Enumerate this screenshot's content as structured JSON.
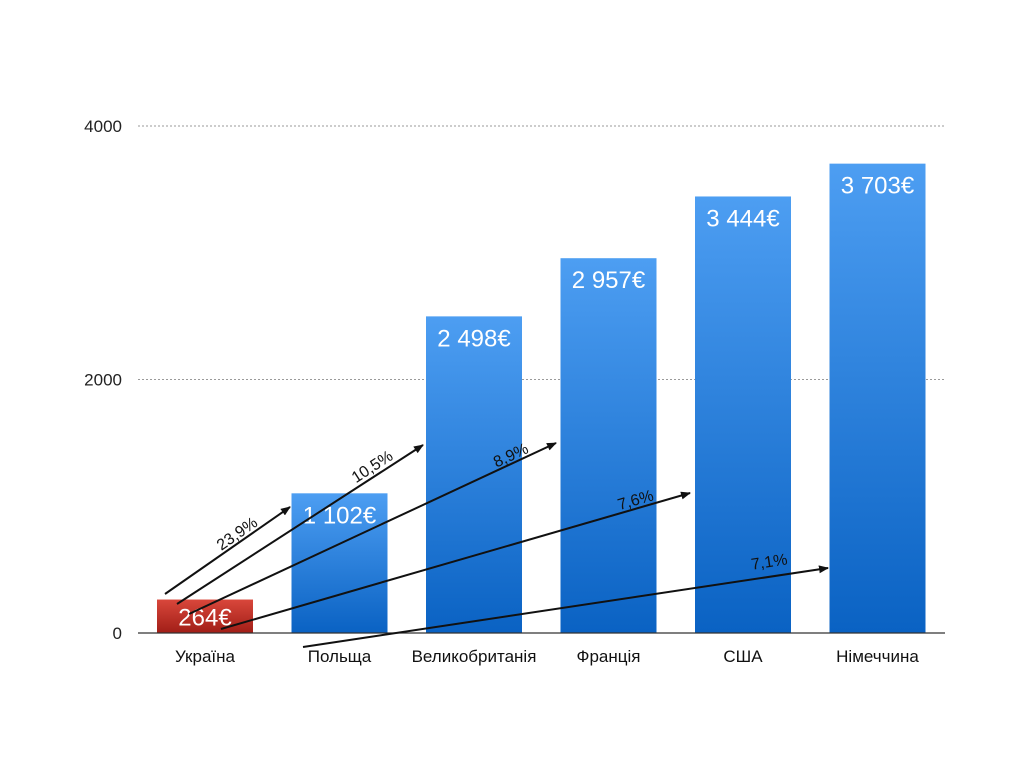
{
  "chart_data": {
    "type": "bar",
    "categories": [
      "Україна",
      "Польща",
      "Великобританія",
      "Франція",
      "США",
      "Німеччина"
    ],
    "values": [
      264,
      1102,
      2498,
      2957,
      3444,
      3703
    ],
    "value_labels": [
      "264€",
      "1 102€",
      "2 498€",
      "2 957€",
      "3 444€",
      "3 703€"
    ],
    "highlight_index": 0,
    "ylim": [
      0,
      4000
    ],
    "yticks": [
      0,
      2000,
      4000
    ],
    "ytick_labels": [
      "0",
      "2000",
      "4000"
    ],
    "grid": true,
    "title": "",
    "xlabel": "",
    "ylabel": "",
    "annotations": [
      {
        "label": "23,9%",
        "to_category": "Польща"
      },
      {
        "label": "10,5%",
        "to_category": "Великобританія"
      },
      {
        "label": "8,9%",
        "to_category": "Франція"
      },
      {
        "label": "7,6%",
        "to_category": "США"
      },
      {
        "label": "7,1%",
        "to_category": "Німеччина"
      }
    ],
    "colors": {
      "bar_top": "#4d9ef2",
      "bar_bottom": "#0a62c3",
      "highlight_top": "#d9473b",
      "highlight_bottom": "#a11e17",
      "grid": "#9a9a9a",
      "axis": "#333333",
      "arrow": "#111111"
    }
  }
}
